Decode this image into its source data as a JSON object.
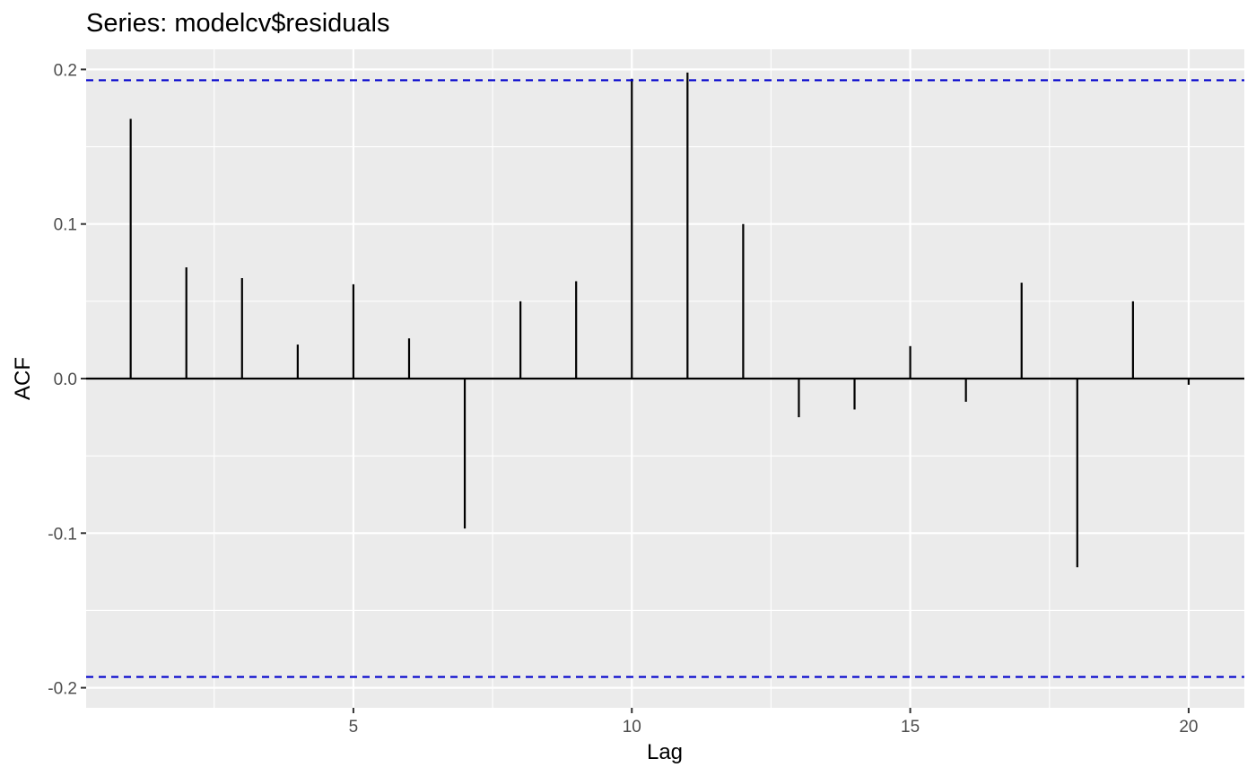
{
  "chart_data": {
    "type": "bar",
    "style": "acf-lollipop",
    "title": "Series: modelcv$residuals",
    "xlabel": "Lag",
    "ylabel": "ACF",
    "x": [
      1,
      2,
      3,
      4,
      5,
      6,
      7,
      8,
      9,
      10,
      11,
      12,
      13,
      14,
      15,
      16,
      17,
      18,
      19,
      20
    ],
    "values": [
      0.168,
      0.072,
      0.065,
      0.022,
      0.061,
      0.026,
      -0.097,
      0.05,
      0.063,
      0.194,
      0.198,
      0.1,
      -0.025,
      -0.02,
      0.021,
      -0.015,
      0.062,
      -0.122,
      0.05,
      -0.004
    ],
    "confidence_bounds": [
      0.193,
      -0.193
    ],
    "xlim": [
      0.2,
      21.0
    ],
    "ylim": [
      -0.213,
      0.213
    ],
    "x_ticks": [
      5,
      10,
      15,
      20
    ],
    "x_tick_labels": [
      "5",
      "10",
      "15",
      "20"
    ],
    "y_ticks": [
      0.2,
      0.1,
      0.0,
      -0.1,
      -0.2
    ],
    "y_tick_labels": [
      "0.2",
      "0.1",
      "0.0",
      "-0.1",
      "-0.2"
    ],
    "grid": true,
    "colors": {
      "panel_background": "#ebebeb",
      "grid": "#ffffff",
      "bars": "#000000",
      "confidence_line": "#0000cc",
      "tick_text": "#4d4d4d"
    }
  }
}
